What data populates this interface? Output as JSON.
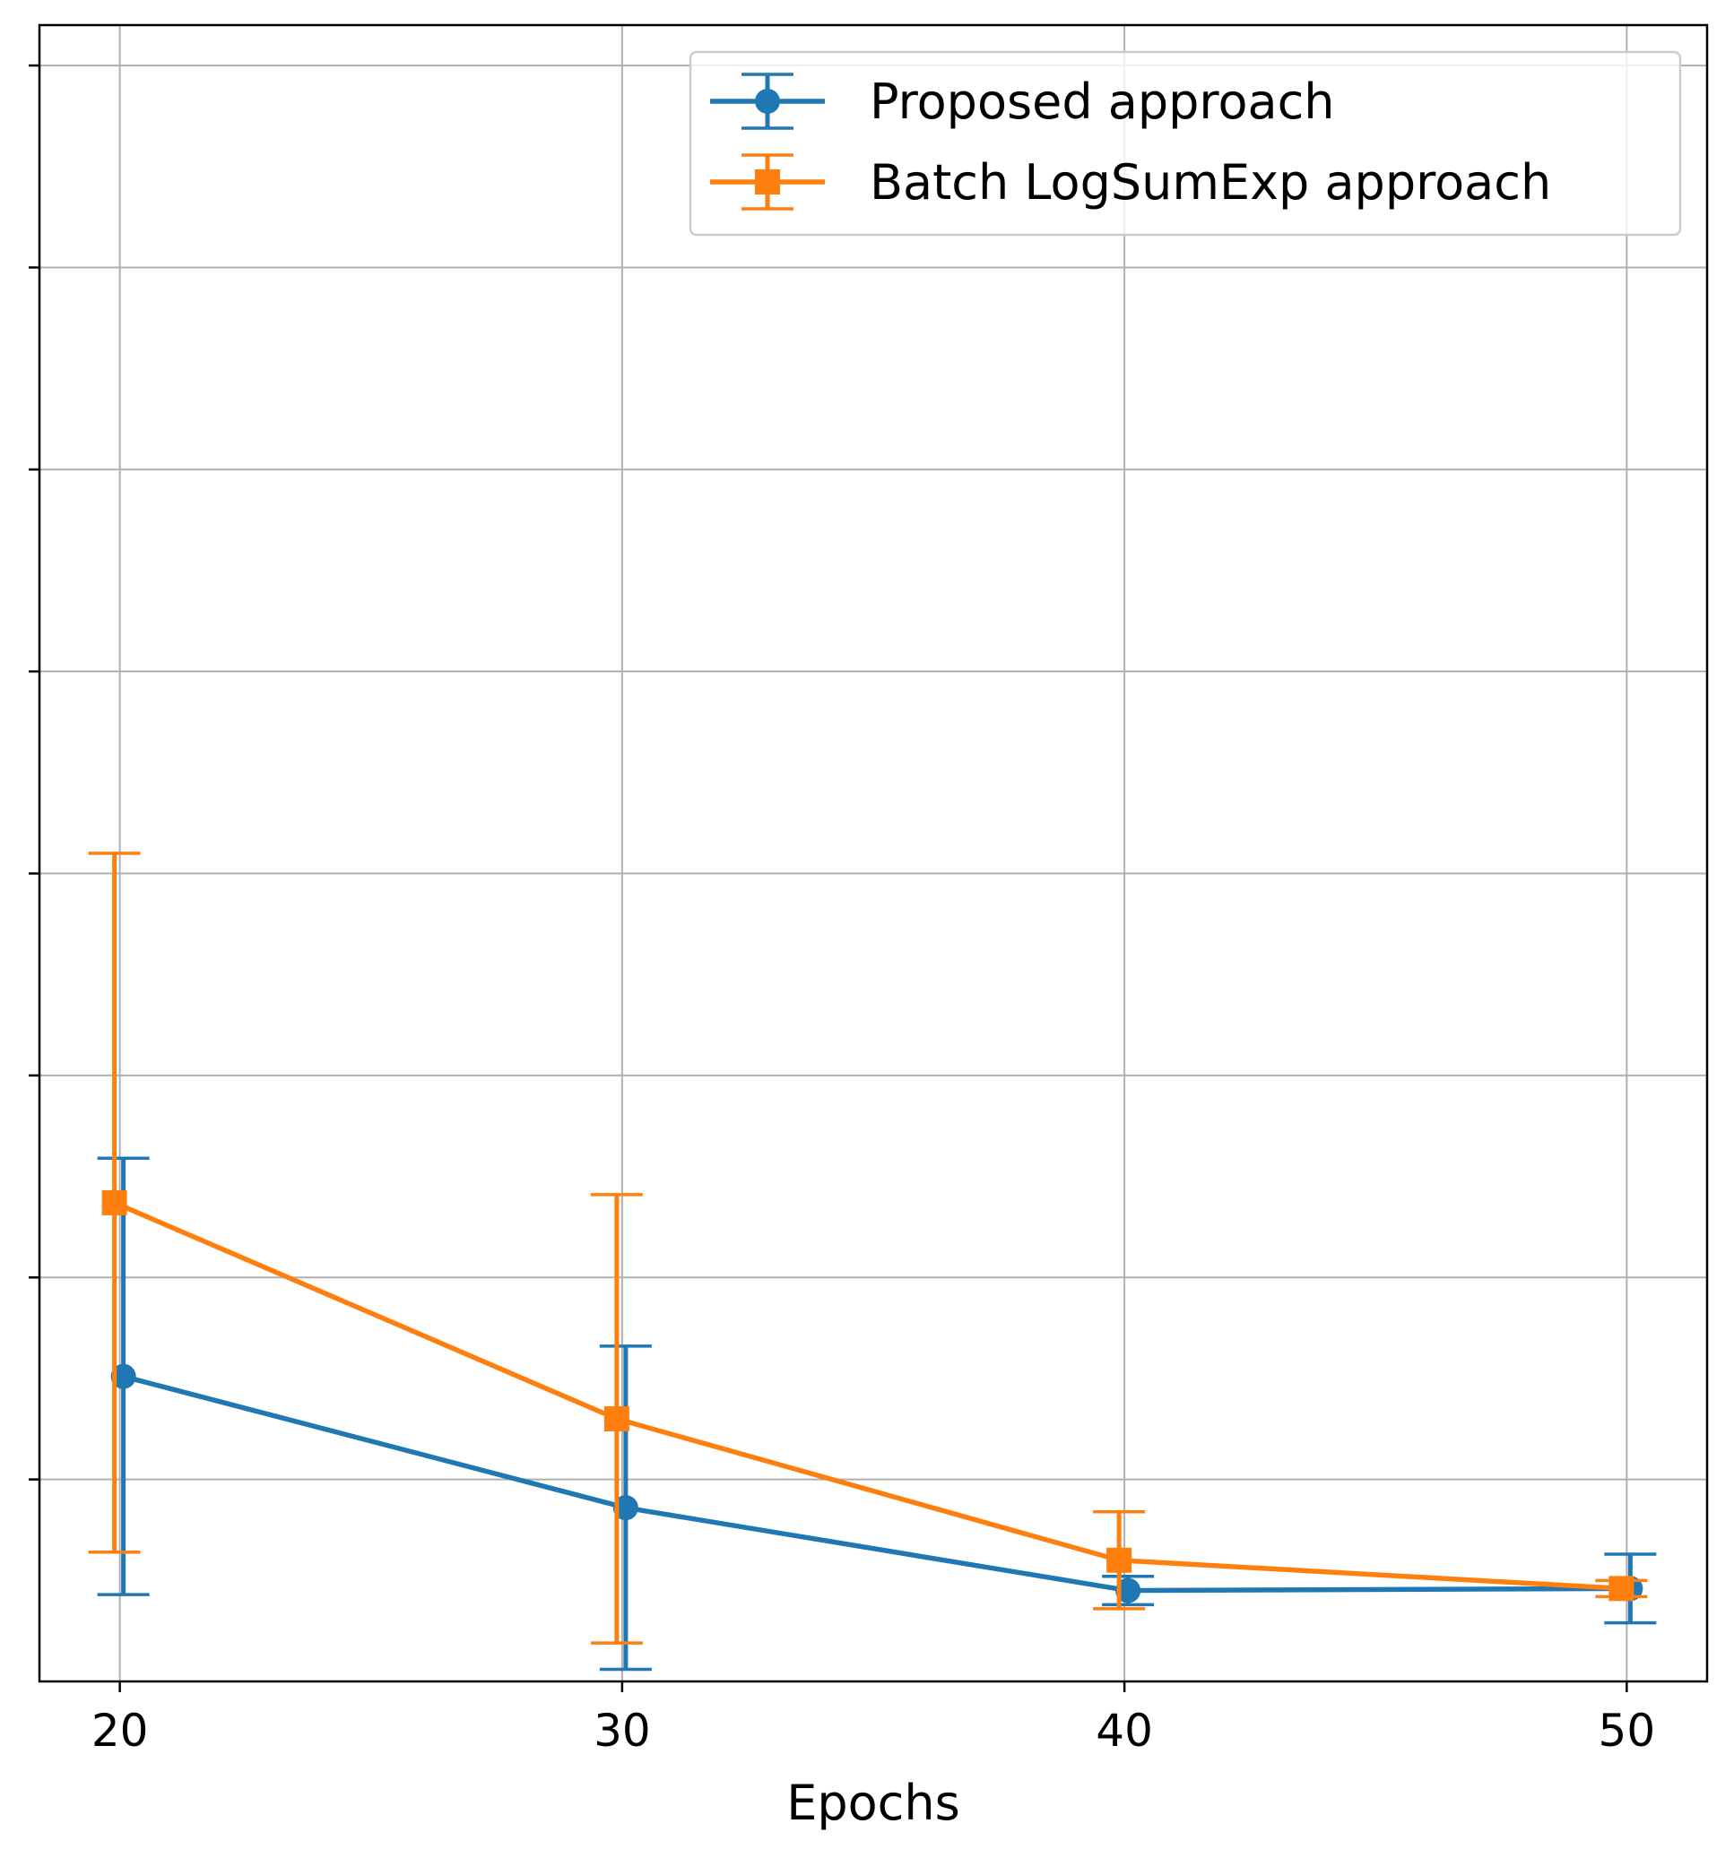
{
  "chart_data": {
    "type": "line",
    "title": "",
    "xlabel": "Epochs",
    "ylabel": "",
    "x": [
      20,
      30,
      40,
      50
    ],
    "xticks": [
      20,
      30,
      40,
      50
    ],
    "xtick_labels": [
      "20",
      "30",
      "40",
      "50"
    ],
    "xlim": [
      18.4,
      51.6
    ],
    "ylim": [
      0,
      8.2
    ],
    "yticks": [
      1,
      2,
      3,
      4,
      5,
      6,
      7,
      8
    ],
    "ytick_labels_visible": false,
    "grid": true,
    "legend_position": "top-right",
    "series": [
      {
        "name": "Proposed approach",
        "color": "#1f77b4",
        "marker": "circle",
        "values": [
          1.51,
          0.86,
          0.45,
          0.46
        ],
        "errors": [
          1.08,
          0.8,
          0.07,
          0.17
        ]
      },
      {
        "name": "Batch LogSumExp approach",
        "color": "#ff7f0e",
        "marker": "square",
        "values": [
          2.37,
          1.3,
          0.6,
          0.46
        ],
        "errors": [
          1.73,
          1.11,
          0.24,
          0.04
        ]
      }
    ]
  }
}
